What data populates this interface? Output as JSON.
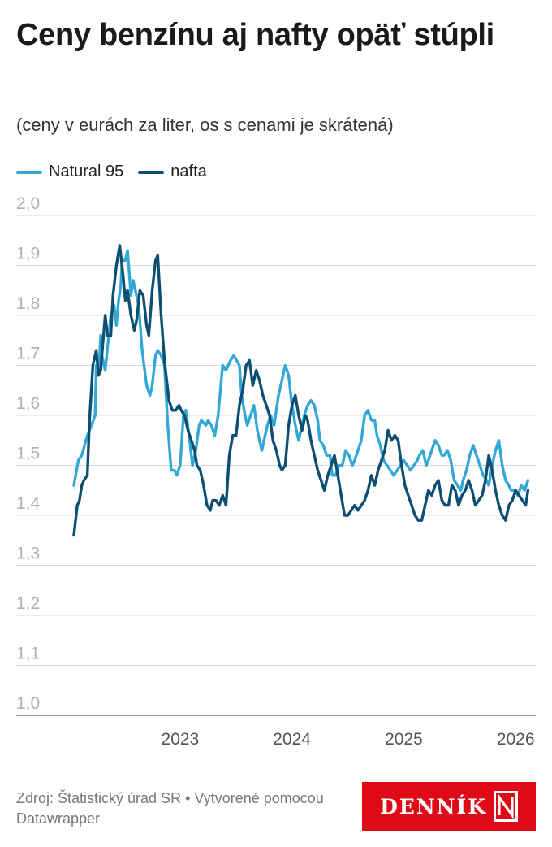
{
  "title": "Ceny benzínu aj nafty opäť stúpli",
  "subtitle": "(ceny v eurách za liter, os s cenami je skrátená)",
  "source": "Zdroj: Štatistický úrad SR • Vytvorené pomocou Datawrapper",
  "logo_text": "DENNÍK",
  "colors": {
    "natural95": "#33a8d6",
    "nafta": "#0d4f72",
    "grid": "#d9d9d9",
    "tick": "#b0b0b0"
  },
  "chart_data": {
    "type": "line",
    "title": "Ceny benzínu aj nafty opäť stúpli",
    "ylim": [
      1.0,
      2.0
    ],
    "y_ticks": [
      "1,0",
      "1,1",
      "1,2",
      "1,3",
      "1,4",
      "1,5",
      "1,6",
      "1,7",
      "1,8",
      "1,9",
      "2,0"
    ],
    "x_ticks": [
      {
        "label": "2023",
        "value": 2023.0
      },
      {
        "label": "2024",
        "value": 2024.0
      },
      {
        "label": "2025",
        "value": 2025.0
      },
      {
        "label": "2026",
        "value": 2026.0
      }
    ],
    "grid": "horizontal",
    "legend_position": "top-left",
    "series": [
      {
        "name": "Natural 95",
        "color": "#33a8d6",
        "x": [
          2022.05,
          2022.09,
          2022.12,
          2022.17,
          2022.19,
          2022.24,
          2022.25,
          2022.27,
          2022.29,
          2022.3,
          2022.33,
          2022.38,
          2022.41,
          2022.43,
          2022.45,
          2022.47,
          2022.48,
          2022.51,
          2022.53,
          2022.56,
          2022.58,
          2022.6,
          2022.63,
          2022.66,
          2022.7,
          2022.73,
          2022.75,
          2022.78,
          2022.8,
          2022.83,
          2022.86,
          2022.89,
          2022.92,
          2022.95,
          2022.97,
          2023.0,
          2023.03,
          2023.05,
          2023.08,
          2023.11,
          2023.14,
          2023.17,
          2023.19,
          2023.23,
          2023.25,
          2023.28,
          2023.31,
          2023.34,
          2023.38,
          2023.41,
          2023.45,
          2023.48,
          2023.53,
          2023.55,
          2023.58,
          2023.6,
          2023.63,
          2023.66,
          2023.69,
          2023.71,
          2023.73,
          2023.75,
          2023.78,
          2023.81,
          2023.84,
          2023.86,
          2023.88,
          2023.91,
          2023.94,
          2023.97,
          2024.0,
          2024.03,
          2024.06,
          2024.08,
          2024.11,
          2024.14,
          2024.17,
          2024.2,
          2024.23,
          2024.25,
          2024.28,
          2024.31,
          2024.34,
          2024.36,
          2024.39,
          2024.42,
          2024.45,
          2024.48,
          2024.51,
          2024.54,
          2024.56,
          2024.59,
          2024.62,
          2024.65,
          2024.68,
          2024.71,
          2024.74,
          2024.76,
          2024.79,
          2024.82,
          2024.85,
          2024.88,
          2024.91,
          2024.94,
          2024.97,
          2025.0,
          2025.03,
          2025.06,
          2025.09,
          2025.12,
          2025.14,
          2025.17,
          2025.2,
          2025.22,
          2025.25,
          2025.28,
          2025.31,
          2025.34,
          2025.36,
          2025.39,
          2025.42,
          2025.45,
          2025.48,
          2025.51,
          2025.53,
          2025.56,
          2025.59,
          2025.62,
          2025.65,
          2025.68,
          2025.71,
          2025.74,
          2025.76,
          2025.79,
          2025.82,
          2025.85,
          2025.88,
          2025.91,
          2025.94,
          2025.96,
          2025.99,
          2026.02,
          2026.05,
          2026.08,
          2026.11
        ],
        "y": [
          1.46,
          1.51,
          1.52,
          1.56,
          1.57,
          1.6,
          1.7,
          1.68,
          1.76,
          1.72,
          1.69,
          1.8,
          1.82,
          1.78,
          1.83,
          1.86,
          1.91,
          1.91,
          1.93,
          1.84,
          1.87,
          1.85,
          1.82,
          1.73,
          1.66,
          1.64,
          1.66,
          1.72,
          1.73,
          1.72,
          1.7,
          1.58,
          1.49,
          1.49,
          1.48,
          1.5,
          1.6,
          1.61,
          1.56,
          1.5,
          1.53,
          1.58,
          1.59,
          1.58,
          1.59,
          1.58,
          1.56,
          1.6,
          1.7,
          1.69,
          1.71,
          1.72,
          1.7,
          1.64,
          1.6,
          1.58,
          1.6,
          1.62,
          1.57,
          1.55,
          1.53,
          1.55,
          1.58,
          1.6,
          1.58,
          1.61,
          1.64,
          1.67,
          1.7,
          1.68,
          1.62,
          1.58,
          1.55,
          1.57,
          1.6,
          1.62,
          1.63,
          1.62,
          1.59,
          1.55,
          1.54,
          1.52,
          1.52,
          1.48,
          1.48,
          1.5,
          1.5,
          1.53,
          1.52,
          1.5,
          1.51,
          1.53,
          1.55,
          1.6,
          1.61,
          1.59,
          1.59,
          1.56,
          1.54,
          1.51,
          1.5,
          1.49,
          1.48,
          1.49,
          1.5,
          1.51,
          1.5,
          1.49,
          1.5,
          1.51,
          1.52,
          1.53,
          1.5,
          1.51,
          1.53,
          1.55,
          1.54,
          1.52,
          1.52,
          1.53,
          1.51,
          1.47,
          1.46,
          1.45,
          1.47,
          1.49,
          1.52,
          1.54,
          1.52,
          1.5,
          1.48,
          1.47,
          1.46,
          1.5,
          1.53,
          1.55,
          1.5,
          1.47,
          1.46,
          1.45,
          1.45,
          1.44,
          1.46,
          1.45,
          1.47
        ]
      },
      {
        "name": "nafta",
        "color": "#0d4f72",
        "x": [
          2022.05,
          2022.08,
          2022.1,
          2022.12,
          2022.14,
          2022.17,
          2022.19,
          2022.22,
          2022.25,
          2022.27,
          2022.29,
          2022.3,
          2022.33,
          2022.35,
          2022.38,
          2022.4,
          2022.43,
          2022.46,
          2022.49,
          2022.51,
          2022.53,
          2022.56,
          2022.59,
          2022.61,
          2022.64,
          2022.67,
          2022.7,
          2022.72,
          2022.75,
          2022.78,
          2022.8,
          2022.83,
          2022.86,
          2022.9,
          2022.93,
          2022.96,
          2022.99,
          2023.01,
          2023.04,
          2023.07,
          2023.1,
          2023.13,
          2023.15,
          2023.18,
          2023.21,
          2023.24,
          2023.27,
          2023.29,
          2023.32,
          2023.35,
          2023.38,
          2023.41,
          2023.44,
          2023.47,
          2023.5,
          2023.53,
          2023.56,
          2023.59,
          2023.62,
          2023.65,
          2023.68,
          2023.71,
          2023.74,
          2023.77,
          2023.8,
          2023.83,
          2023.86,
          2023.89,
          2023.91,
          2023.94,
          2023.97,
          2024.0,
          2024.03,
          2024.06,
          2024.09,
          2024.12,
          2024.14,
          2024.17,
          2024.2,
          2024.23,
          2024.26,
          2024.29,
          2024.32,
          2024.35,
          2024.38,
          2024.41,
          2024.44,
          2024.47,
          2024.5,
          2024.53,
          2024.56,
          2024.59,
          2024.62,
          2024.65,
          2024.68,
          2024.71,
          2024.74,
          2024.77,
          2024.8,
          2024.83,
          2024.86,
          2024.89,
          2024.92,
          2024.95,
          2024.98,
          2025.01,
          2025.04,
          2025.07,
          2025.1,
          2025.13,
          2025.16,
          2025.19,
          2025.22,
          2025.25,
          2025.28,
          2025.31,
          2025.34,
          2025.37,
          2025.4,
          2025.43,
          2025.46,
          2025.49,
          2025.52,
          2025.55,
          2025.58,
          2025.61,
          2025.64,
          2025.67,
          2025.7,
          2025.73,
          2025.76,
          2025.79,
          2025.82,
          2025.85,
          2025.88,
          2025.91,
          2025.94,
          2025.97,
          2026.0,
          2026.03,
          2026.06,
          2026.09,
          2026.11
        ],
        "y": [
          1.36,
          1.42,
          1.43,
          1.46,
          1.47,
          1.48,
          1.59,
          1.7,
          1.73,
          1.68,
          1.69,
          1.72,
          1.8,
          1.76,
          1.76,
          1.84,
          1.9,
          1.94,
          1.88,
          1.83,
          1.85,
          1.8,
          1.77,
          1.79,
          1.85,
          1.84,
          1.78,
          1.76,
          1.85,
          1.91,
          1.92,
          1.8,
          1.71,
          1.63,
          1.61,
          1.61,
          1.62,
          1.61,
          1.6,
          1.57,
          1.55,
          1.53,
          1.5,
          1.49,
          1.46,
          1.42,
          1.41,
          1.43,
          1.43,
          1.42,
          1.44,
          1.42,
          1.52,
          1.56,
          1.56,
          1.62,
          1.65,
          1.7,
          1.71,
          1.66,
          1.69,
          1.67,
          1.64,
          1.62,
          1.6,
          1.55,
          1.53,
          1.5,
          1.49,
          1.5,
          1.58,
          1.62,
          1.64,
          1.6,
          1.57,
          1.6,
          1.59,
          1.55,
          1.52,
          1.49,
          1.47,
          1.45,
          1.48,
          1.5,
          1.52,
          1.48,
          1.44,
          1.4,
          1.4,
          1.41,
          1.42,
          1.41,
          1.42,
          1.43,
          1.45,
          1.48,
          1.46,
          1.49,
          1.51,
          1.53,
          1.57,
          1.55,
          1.56,
          1.55,
          1.5,
          1.46,
          1.44,
          1.42,
          1.4,
          1.39,
          1.39,
          1.42,
          1.45,
          1.44,
          1.46,
          1.47,
          1.43,
          1.42,
          1.42,
          1.46,
          1.45,
          1.42,
          1.44,
          1.45,
          1.47,
          1.45,
          1.42,
          1.43,
          1.44,
          1.47,
          1.52,
          1.49,
          1.45,
          1.42,
          1.4,
          1.39,
          1.42,
          1.43,
          1.45,
          1.44,
          1.43,
          1.42,
          1.45
        ]
      }
    ]
  }
}
